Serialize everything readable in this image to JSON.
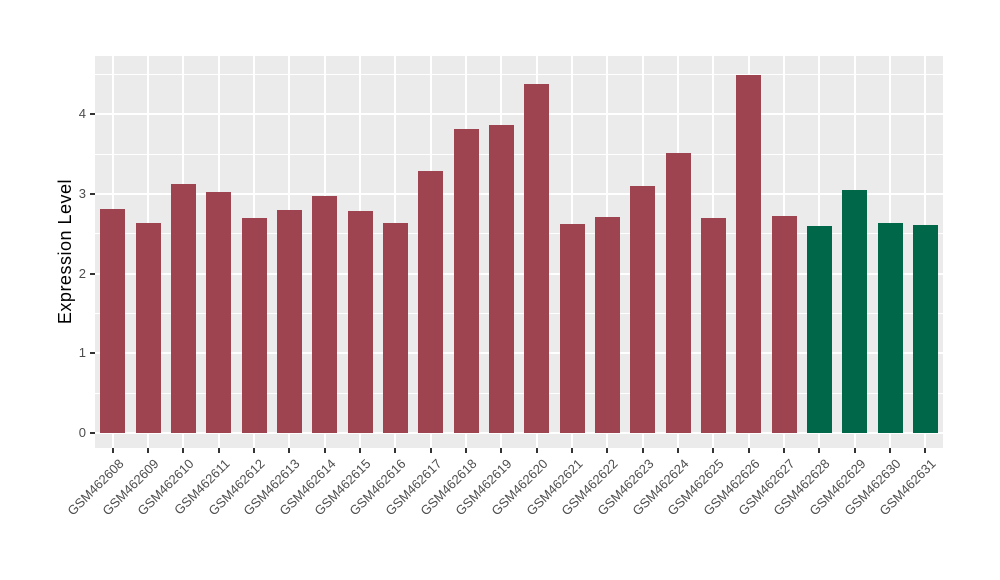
{
  "chart_data": {
    "type": "bar",
    "title": "",
    "xlabel": "",
    "ylabel": "Expression Level",
    "categories": [
      "GSM462608",
      "GSM462609",
      "GSM462610",
      "GSM462611",
      "GSM462612",
      "GSM462613",
      "GSM462614",
      "GSM462615",
      "GSM462616",
      "GSM462617",
      "GSM462618",
      "GSM462619",
      "GSM462620",
      "GSM462621",
      "GSM462622",
      "GSM462623",
      "GSM462624",
      "GSM462625",
      "GSM462626",
      "GSM462627",
      "GSM462628",
      "GSM462629",
      "GSM462630",
      "GSM462631"
    ],
    "values": [
      2.81,
      2.64,
      3.13,
      3.03,
      2.7,
      2.8,
      2.97,
      2.79,
      2.63,
      3.29,
      3.81,
      3.86,
      4.38,
      2.62,
      2.71,
      3.1,
      3.51,
      2.7,
      4.49,
      2.72,
      2.6,
      3.05,
      2.63,
      2.61
    ],
    "groups": [
      "maroon",
      "maroon",
      "maroon",
      "maroon",
      "maroon",
      "maroon",
      "maroon",
      "maroon",
      "maroon",
      "maroon",
      "maroon",
      "maroon",
      "maroon",
      "maroon",
      "maroon",
      "maroon",
      "maroon",
      "maroon",
      "maroon",
      "maroon",
      "green",
      "green",
      "green",
      "green"
    ],
    "palette": {
      "maroon": "#9E4450",
      "green": "#006849"
    },
    "ytick_values": [
      0,
      1,
      2,
      3,
      4
    ],
    "ytick_labels": [
      "0",
      "1",
      "2",
      "3",
      "4"
    ],
    "yminor_values": [
      0.5,
      1.5,
      2.5,
      3.5,
      4.5
    ],
    "ylim": [
      -0.19,
      4.73
    ],
    "legend": "none",
    "style": {
      "panel_background": "#EBEBEB",
      "gridline_color": "#FFFFFF",
      "tick_color": "#333333",
      "tick_label_color": "#4D4D4D"
    }
  }
}
